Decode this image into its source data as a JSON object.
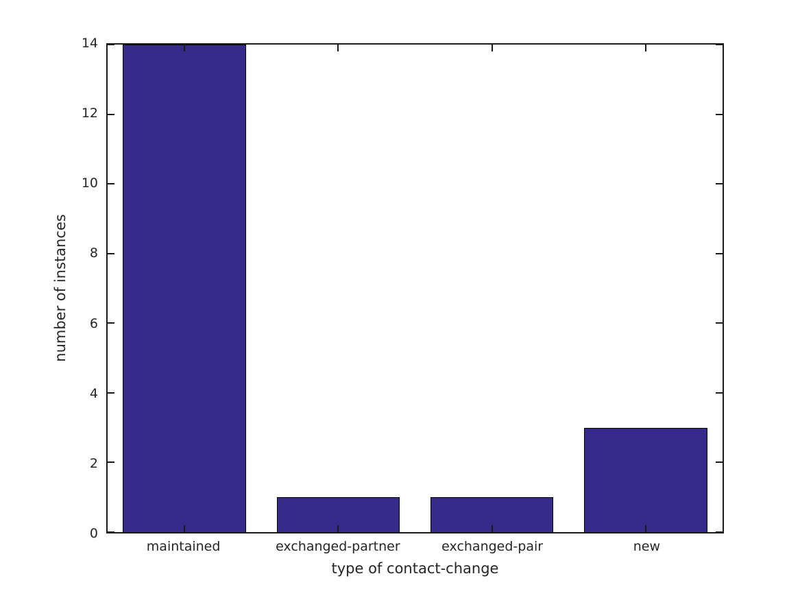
{
  "chart_data": {
    "type": "bar",
    "categories": [
      "maintained",
      "exchanged-partner",
      "exchanged-pair",
      "new"
    ],
    "values": [
      14,
      1,
      1,
      3
    ],
    "title": "",
    "xlabel": "type of contact-change",
    "ylabel": "number of instances",
    "ylim": [
      0,
      14
    ],
    "yticks": [
      0,
      2,
      4,
      6,
      8,
      10,
      12,
      14
    ],
    "grid": false,
    "legend": null,
    "bar_width_fraction": 0.8,
    "tick_direction": "in",
    "box": true,
    "colors": {
      "bar_fill": "#352A87",
      "bar_edge": "#000000",
      "axis": "#1a1a1a",
      "text": "#262626",
      "background": "#ffffff"
    }
  }
}
